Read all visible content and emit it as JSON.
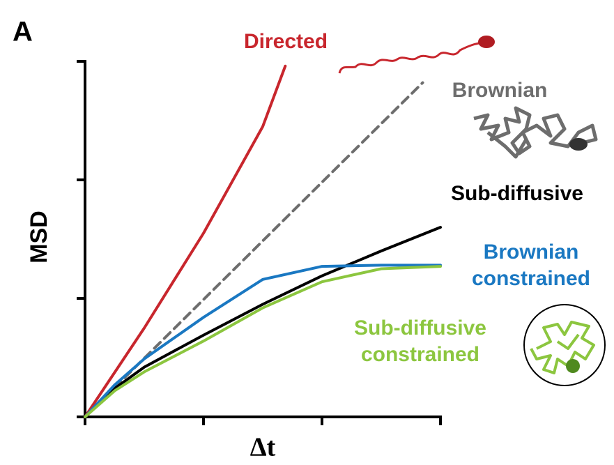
{
  "chart_data": {
    "type": "line",
    "panel_label": "A",
    "x_label": "Δt",
    "y_label": "MSD",
    "xlim": [
      0,
      3
    ],
    "ylim": [
      0,
      3
    ],
    "xticks": [
      0,
      1,
      2,
      3
    ],
    "yticks": [
      0,
      1,
      2,
      3
    ],
    "series": [
      {
        "name": "Directed",
        "color": "#c8262d",
        "dashed": false,
        "x": [
          0,
          0.5,
          1,
          1.5,
          1.69
        ],
        "values": [
          0,
          0.75,
          1.55,
          2.45,
          2.96
        ]
      },
      {
        "name": "Brownian",
        "color": "#6d6d6d",
        "dashed": true,
        "x": [
          0,
          1,
          2,
          2.85
        ],
        "values": [
          0,
          0.99,
          1.98,
          2.82
        ]
      },
      {
        "name": "Sub-diffusive",
        "color": "#000000",
        "dashed": false,
        "x": [
          0,
          0.25,
          0.5,
          1,
          1.5,
          2,
          2.5,
          3
        ],
        "values": [
          0,
          0.24,
          0.42,
          0.69,
          0.95,
          1.19,
          1.4,
          1.6
        ]
      },
      {
        "name": "Brownian constrained",
        "color": "#1a78c2",
        "dashed": false,
        "x": [
          0,
          0.25,
          0.5,
          1,
          1.5,
          2,
          2.5,
          3
        ],
        "values": [
          0,
          0.27,
          0.49,
          0.84,
          1.16,
          1.27,
          1.28,
          1.28
        ]
      },
      {
        "name": "Sub-diffusive constrained",
        "color": "#8cc63f",
        "dashed": false,
        "x": [
          0,
          0.25,
          0.5,
          1,
          1.5,
          2,
          2.5,
          3
        ],
        "values": [
          0,
          0.22,
          0.38,
          0.64,
          0.92,
          1.14,
          1.25,
          1.27
        ]
      }
    ]
  }
}
